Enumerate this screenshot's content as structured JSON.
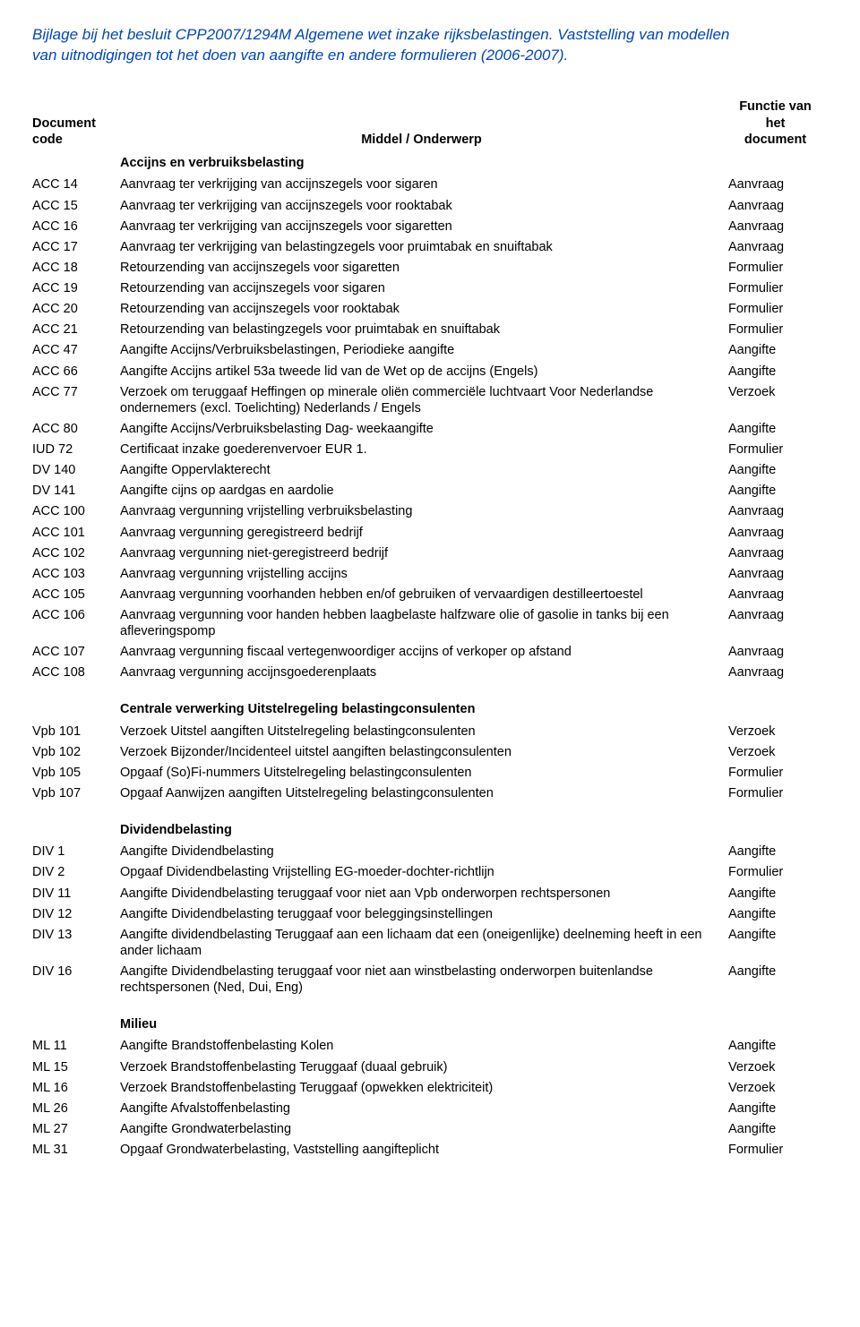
{
  "header_line1": "Bijlage bij het besluit CPP2007/1294M Algemene wet inzake rijksbelastingen. Vaststelling van modellen",
  "header_line2": "van uitnodigingen tot het doen van aangifte en andere formulieren (2006-2007).",
  "columns": {
    "code": "Document code",
    "mid": "Middel / Onderwerp",
    "func_l1": "Functie van",
    "func_l2": "het",
    "func_l3": "document"
  },
  "sections": [
    {
      "title": "Accijns en verbruiksbelasting",
      "first": true,
      "rows": [
        {
          "code": "ACC 14",
          "mid": "Aanvraag ter verkrijging van accijnszegels voor sigaren",
          "func": "Aanvraag"
        },
        {
          "code": "ACC 15",
          "mid": "Aanvraag ter verkrijging van accijnszegels voor rooktabak",
          "func": "Aanvraag"
        },
        {
          "code": "ACC 16",
          "mid": "Aanvraag ter verkrijging van accijnszegels voor sigaretten",
          "func": "Aanvraag"
        },
        {
          "code": "ACC 17",
          "mid": "Aanvraag ter verkrijging van belastingzegels voor pruimtabak en snuiftabak",
          "func": "Aanvraag"
        },
        {
          "code": "ACC 18",
          "mid": "Retourzending van accijnszegels voor sigaretten",
          "func": "Formulier"
        },
        {
          "code": "ACC 19",
          "mid": "Retourzending van accijnszegels voor sigaren",
          "func": "Formulier"
        },
        {
          "code": "ACC 20",
          "mid": "Retourzending van accijnszegels voor rooktabak",
          "func": "Formulier"
        },
        {
          "code": "ACC 21",
          "mid": "Retourzending van belastingzegels voor pruimtabak en snuiftabak",
          "func": "Formulier"
        },
        {
          "code": "ACC 47",
          "mid": "Aangifte Accijns/Verbruiksbelastingen, Periodieke aangifte",
          "func": "Aangifte"
        },
        {
          "code": "ACC 66",
          "mid": "Aangifte Accijns artikel 53a tweede lid van de Wet op de accijns (Engels)",
          "func": "Aangifte"
        },
        {
          "code": "ACC 77",
          "mid": "Verzoek om teruggaaf Heffingen op minerale oliën commerciële luchtvaart Voor Nederlandse ondernemers (excl. Toelichting) Nederlands / Engels",
          "func": "Verzoek"
        },
        {
          "code": "ACC 80",
          "mid": "Aangifte Accijns/Verbruiksbelasting Dag- weekaangifte",
          "func": "Aangifte"
        },
        {
          "code": "IUD 72",
          "mid": "Certificaat inzake goederenvervoer EUR 1.",
          "func": "Formulier"
        },
        {
          "code": "DV 140",
          "mid": "Aangifte Oppervlakterecht",
          "func": "Aangifte"
        },
        {
          "code": "DV 141",
          "mid": "Aangifte cijns op aardgas en aardolie",
          "func": "Aangifte"
        },
        {
          "code": "ACC 100",
          "mid": "Aanvraag vergunning vrijstelling verbruiksbelasting",
          "func": "Aanvraag"
        },
        {
          "code": "ACC 101",
          "mid": "Aanvraag vergunning geregistreerd bedrijf",
          "func": "Aanvraag"
        },
        {
          "code": "ACC 102",
          "mid": "Aanvraag vergunning niet-geregistreerd bedrijf",
          "func": "Aanvraag"
        },
        {
          "code": "ACC 103",
          "mid": "Aanvraag vergunning vrijstelling accijns",
          "func": "Aanvraag"
        },
        {
          "code": "ACC 105",
          "mid": "Aanvraag vergunning voorhanden hebben en/of gebruiken of vervaardigen destilleertoestel",
          "func": "Aanvraag"
        },
        {
          "code": "ACC 106",
          "mid": "Aanvraag vergunning voor handen hebben laagbelaste halfzware olie of gasolie in tanks bij een afleveringspomp",
          "func": "Aanvraag"
        },
        {
          "code": "ACC 107",
          "mid": "Aanvraag vergunning fiscaal vertegenwoordiger accijns of verkoper op afstand",
          "func": "Aanvraag"
        },
        {
          "code": "ACC 108",
          "mid": "Aanvraag vergunning accijnsgoederenplaats",
          "func": "Aanvraag"
        }
      ]
    },
    {
      "title": "Centrale verwerking Uitstelregeling belastingconsulenten",
      "rows": [
        {
          "code": "Vpb 101",
          "mid": "Verzoek Uitstel aangiften Uitstelregeling belastingconsulenten",
          "func": "Verzoek"
        },
        {
          "code": "Vpb 102",
          "mid": "Verzoek Bijzonder/Incidenteel uitstel aangiften belastingconsulenten",
          "func": "Verzoek"
        },
        {
          "code": "Vpb 105",
          "mid": "Opgaaf (So)Fi-nummers Uitstelregeling belastingconsulenten",
          "func": "Formulier"
        },
        {
          "code": "Vpb 107",
          "mid": "Opgaaf Aanwijzen aangiften Uitstelregeling belastingconsulenten",
          "func": "Formulier"
        }
      ]
    },
    {
      "title": "Dividendbelasting",
      "rows": [
        {
          "code": "DIV 1",
          "mid": "Aangifte Dividendbelasting",
          "func": "Aangifte"
        },
        {
          "code": "DIV 2",
          "mid": "Opgaaf Dividendbelasting Vrijstelling EG-moeder-dochter-richtlijn",
          "func": "Formulier"
        },
        {
          "code": "DIV 11",
          "mid": "Aangifte Dividendbelasting teruggaaf voor niet aan Vpb onderworpen rechtspersonen",
          "func": "Aangifte"
        },
        {
          "code": "DIV 12",
          "mid": "Aangifte Dividendbelasting teruggaaf voor beleggingsinstellingen",
          "func": "Aangifte"
        },
        {
          "code": "DIV 13",
          "mid": "Aangifte dividendbelasting Teruggaaf aan een lichaam dat een (oneigenlijke) deelneming heeft in een ander lichaam",
          "func": "Aangifte"
        },
        {
          "code": "DIV 16",
          "mid": "Aangifte Dividendbelasting teruggaaf voor niet aan winstbelasting onderworpen buitenlandse rechtspersonen (Ned, Dui, Eng)",
          "func": "Aangifte"
        }
      ]
    },
    {
      "title": "Milieu",
      "rows": [
        {
          "code": "ML 11",
          "mid": "Aangifte Brandstoffenbelasting Kolen",
          "func": "Aangifte"
        },
        {
          "code": "ML 15",
          "mid": "Verzoek Brandstoffenbelasting Teruggaaf (duaal gebruik)",
          "func": "Verzoek"
        },
        {
          "code": "ML 16",
          "mid": "Verzoek Brandstoffenbelasting Teruggaaf (opwekken elektriciteit)",
          "func": "Verzoek"
        },
        {
          "code": "ML 26",
          "mid": "Aangifte Afvalstoffenbelasting",
          "func": "Aangifte"
        },
        {
          "code": "ML 27",
          "mid": "Aangifte Grondwaterbelasting",
          "func": "Aangifte"
        },
        {
          "code": "ML 31",
          "mid": "Opgaaf Grondwaterbelasting, Vaststelling aangifteplicht",
          "func": "Formulier"
        }
      ]
    }
  ]
}
